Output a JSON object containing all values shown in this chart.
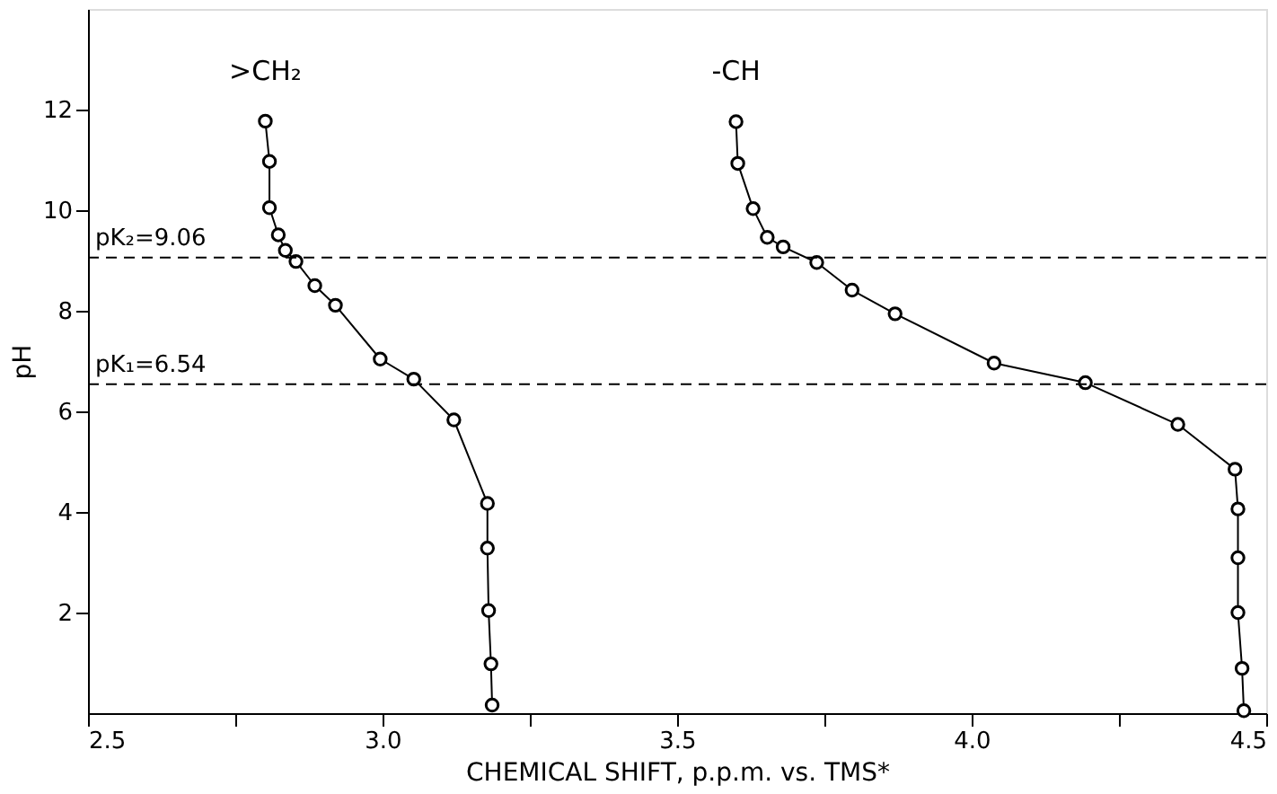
{
  "chart_data": {
    "type": "line",
    "xlabel": "CHEMICAL  SHIFT, p.p.m.  vs.  TMS*",
    "ylabel": "pH",
    "xlim": [
      2.5,
      4.5
    ],
    "ylim": [
      0,
      14
    ],
    "xticks": [
      2.5,
      {
        "value": 2.75,
        "label": null
      },
      {
        "value": 3,
        "label": "3.0"
      },
      {
        "value": 3.25,
        "label": null
      },
      3.5,
      {
        "value": 3.75,
        "label": null
      },
      {
        "value": 4,
        "label": "4.0"
      },
      {
        "value": 4.25,
        "label": null
      },
      4.5
    ],
    "yticks": [
      2,
      4,
      6,
      8,
      10,
      12
    ],
    "grid": false,
    "marker": "circle",
    "line_style": "solid",
    "ref_lines": [
      {
        "axis": "y",
        "value": 9.06,
        "label": "pK₂=9.06",
        "line_style": "dashed",
        "color": "#000000"
      },
      {
        "axis": "y",
        "value": 6.54,
        "label": "pK₁=6.54",
        "line_style": "dashed",
        "color": "#000000"
      }
    ],
    "series": [
      {
        "name": ">CH₂",
        "color": "#000000",
        "x": [
          2.801,
          2.808,
          2.808,
          2.823,
          2.835,
          2.853,
          2.885,
          2.92,
          2.996,
          3.053,
          3.121,
          3.178,
          3.178,
          3.18,
          3.184,
          3.186
        ],
        "values": [
          11.77,
          10.97,
          10.05,
          9.51,
          9.2,
          8.98,
          8.5,
          8.11,
          7.04,
          6.64,
          5.83,
          4.17,
          3.28,
          2.04,
          0.98,
          0.16
        ]
      },
      {
        "name": "-CH",
        "color": "#000000",
        "x": [
          3.6,
          3.603,
          3.629,
          3.653,
          3.68,
          3.737,
          3.797,
          3.87,
          4.038,
          4.193,
          4.35,
          4.447,
          4.452,
          4.452,
          4.452,
          4.459,
          4.462
        ],
        "values": [
          11.76,
          10.93,
          10.03,
          9.46,
          9.27,
          8.96,
          8.41,
          7.94,
          6.96,
          6.57,
          5.74,
          4.85,
          4.06,
          3.09,
          2.0,
          0.89,
          0.05
        ]
      }
    ]
  }
}
